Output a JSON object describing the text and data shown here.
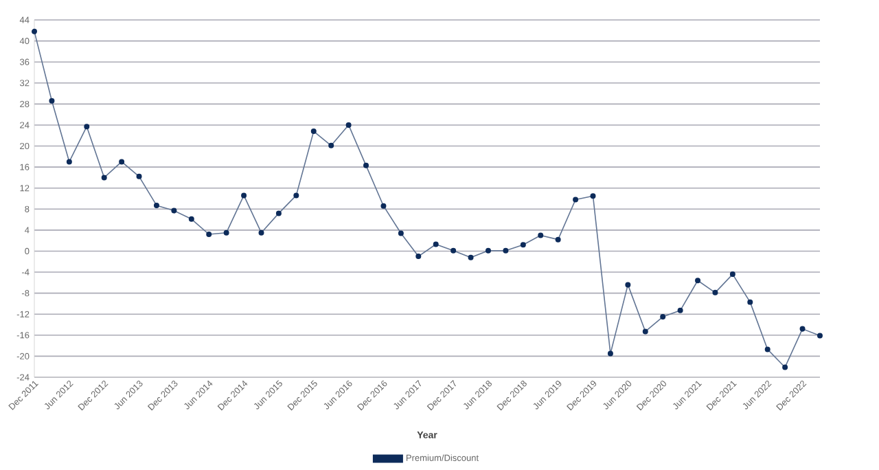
{
  "chart_data": {
    "type": "line",
    "xlabel": "Year",
    "categories": [
      "Dec 2011",
      null,
      "Jun 2012",
      null,
      "Dec 2012",
      null,
      "Jun 2013",
      null,
      "Dec 2013",
      null,
      "Jun 2014",
      null,
      "Dec 2014",
      null,
      "Jun 2015",
      null,
      "Dec 2015",
      null,
      "Jun 2016",
      null,
      "Dec 2016",
      null,
      "Jun 2017",
      null,
      "Dec 2017",
      null,
      "Jun 2018",
      null,
      "Dec 2018",
      null,
      "Jun 2019",
      null,
      "Dec 2019",
      null,
      "Jun 2020",
      null,
      "Dec 2020",
      null,
      "Jun 2021",
      null,
      "Dec 2021",
      null,
      "Jun 2022",
      null,
      "Dec 2022",
      null
    ],
    "series": [
      {
        "name": "Premium/Discount",
        "color": "#0d2b5a",
        "values": [
          41.8,
          28.6,
          17.0,
          23.7,
          14.0,
          17.0,
          14.2,
          8.7,
          7.7,
          6.1,
          3.2,
          3.5,
          10.6,
          3.5,
          7.2,
          10.6,
          22.8,
          20.1,
          24.0,
          16.3,
          8.6,
          3.4,
          -1.0,
          1.3,
          0.1,
          -1.2,
          0.1,
          0.1,
          1.2,
          3.0,
          2.2,
          9.8,
          10.5,
          -19.5,
          -6.4,
          -15.3,
          -12.5,
          -11.3,
          -5.6,
          -7.9,
          -4.4,
          -9.7,
          -18.7,
          -22.1,
          -14.8,
          -16.1
        ]
      }
    ],
    "ylim": [
      -24,
      44
    ],
    "yticks": [
      -24,
      -20,
      -16,
      -12,
      -8,
      -4,
      0,
      4,
      8,
      12,
      16,
      20,
      24,
      28,
      32,
      36,
      40,
      44
    ],
    "grid": "y",
    "legend": "bottom",
    "marker": "circle",
    "line_style": "solid"
  }
}
